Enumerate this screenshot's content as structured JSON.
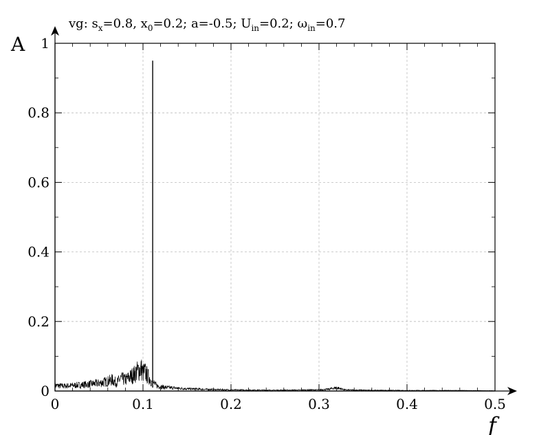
{
  "chart_data": {
    "type": "line",
    "title_parts": [
      "vg: s",
      "x",
      "=0.8, x",
      "0",
      "=0.2; a=-0.5; U",
      "in",
      "=0.2; ω",
      "in",
      "=0.7"
    ],
    "xlabel": "f",
    "ylabel": "A",
    "xlim": [
      0,
      0.5
    ],
    "ylim": [
      0,
      1
    ],
    "x_ticks": [
      "0",
      "0.1",
      "0.2",
      "0.3",
      "0.4",
      "0.5"
    ],
    "y_ticks": [
      "0",
      "0.2",
      "0.4",
      "0.6",
      "0.8",
      "1"
    ],
    "grid": true,
    "series": [
      {
        "color": "#000000",
        "peak": {
          "x": 0.111,
          "y": 0.95
        },
        "x": [
          0,
          0.01,
          0.02,
          0.03,
          0.04,
          0.05,
          0.06,
          0.065,
          0.07,
          0.075,
          0.08,
          0.085,
          0.09,
          0.095,
          0.098,
          0.1,
          0.102,
          0.105,
          0.108,
          0.11,
          0.111,
          0.112,
          0.115,
          0.12,
          0.13,
          0.14,
          0.15,
          0.17,
          0.2,
          0.25,
          0.3,
          0.31,
          0.32,
          0.325,
          0.33,
          0.35,
          0.4,
          0.45,
          0.5
        ],
        "y": [
          0.02,
          0.018,
          0.02,
          0.022,
          0.025,
          0.028,
          0.035,
          0.04,
          0.03,
          0.045,
          0.04,
          0.05,
          0.06,
          0.075,
          0.08,
          0.065,
          0.07,
          0.055,
          0.045,
          0.03,
          0.95,
          0.03,
          0.02,
          0.015,
          0.012,
          0.01,
          0.008,
          0.006,
          0.004,
          0.003,
          0.004,
          0.006,
          0.012,
          0.008,
          0.004,
          0.003,
          0.002,
          0.002,
          0.001
        ]
      }
    ]
  }
}
